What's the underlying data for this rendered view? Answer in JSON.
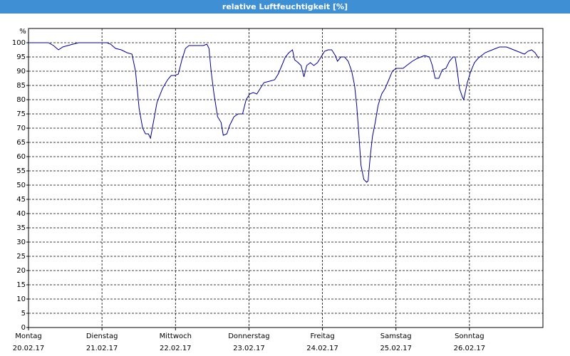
{
  "chart_data": {
    "type": "line",
    "title": "relative Luftfeuchtigkeit [%]",
    "y_label": "%",
    "xlim": [
      0,
      7
    ],
    "ylim": [
      0,
      105
    ],
    "yticks": [
      0,
      5,
      10,
      15,
      20,
      25,
      30,
      35,
      40,
      45,
      50,
      55,
      60,
      65,
      70,
      75,
      80,
      85,
      90,
      95,
      100
    ],
    "xticks": [
      {
        "value": 0,
        "label": "Montag",
        "sublabel": "20.02.17"
      },
      {
        "value": 1,
        "label": "Dienstag",
        "sublabel": "21.02.17"
      },
      {
        "value": 2,
        "label": "Mittwoch",
        "sublabel": "22.02.17"
      },
      {
        "value": 3,
        "label": "Donnerstag",
        "sublabel": "23.02.17"
      },
      {
        "value": 4,
        "label": "Freitag",
        "sublabel": "24.02.17"
      },
      {
        "value": 5,
        "label": "Samstag",
        "sublabel": "25.02.17"
      },
      {
        "value": 6,
        "label": "Sonntag",
        "sublabel": "26.02.17"
      }
    ],
    "grid": true,
    "x": [
      0,
      0.272,
      0.34,
      0.408,
      0.466,
      0.534,
      0.68,
      1.068,
      1.117,
      1.184,
      1.262,
      1.34,
      1.408,
      1.456,
      1.505,
      1.553,
      1.592,
      1.631,
      1.66,
      1.699,
      1.748,
      1.825,
      1.893,
      1.942,
      1.99,
      2.039,
      2.087,
      2.136,
      2.184,
      2.282,
      2.379,
      2.427,
      2.456,
      2.485,
      2.524,
      2.573,
      2.621,
      2.65,
      2.699,
      2.738,
      2.796,
      2.854,
      2.913,
      2.961,
      3.01,
      3.058,
      3.107,
      3.155,
      3.204,
      3.282,
      3.35,
      3.398,
      3.447,
      3.495,
      3.544,
      3.592,
      3.621,
      3.67,
      3.709,
      3.748,
      3.786,
      3.835,
      3.883,
      3.932,
      3.981,
      4.029,
      4.078,
      4.126,
      4.175,
      4.204,
      4.252,
      4.301,
      4.35,
      4.398,
      4.437,
      4.466,
      4.495,
      4.524,
      4.563,
      4.602,
      4.621,
      4.65,
      4.68,
      4.718,
      4.757,
      4.806,
      4.854,
      4.903,
      4.951,
      5,
      5.097,
      5.146,
      5.223,
      5.291,
      5.388,
      5.456,
      5.495,
      5.534,
      5.583,
      5.631,
      5.68,
      5.728,
      5.777,
      5.806,
      5.835,
      5.864,
      5.903,
      5.922,
      5.971,
      6.019,
      6.068,
      6.117,
      6.214,
      6.311,
      6.408,
      6.505,
      6.602,
      6.699,
      6.748,
      6.796,
      6.845,
      6.893,
      6.942
    ],
    "series": [
      {
        "name": "relative Luftfeuchtigkeit",
        "color": "#00008b",
        "values": [
          100,
          100,
          99,
          97.5,
          98.5,
          99,
          100,
          100,
          99.5,
          98,
          97.5,
          96.5,
          96,
          90,
          77,
          70,
          68,
          68,
          66.5,
          72,
          79,
          84,
          87,
          88.5,
          88.5,
          89,
          94,
          98,
          99,
          99,
          99,
          99.5,
          98,
          90,
          82,
          74,
          72,
          67.5,
          68,
          71,
          74,
          75,
          75,
          80,
          82,
          82.5,
          82,
          84,
          86,
          86.5,
          87,
          89,
          92,
          95,
          96.5,
          97.5,
          94,
          93,
          92,
          88,
          92,
          93,
          92,
          93,
          95,
          97,
          97.5,
          97.5,
          95.5,
          93.5,
          95,
          95,
          93.5,
          90,
          85,
          78,
          68,
          57,
          52,
          51,
          51.5,
          60,
          67,
          72,
          78,
          82,
          84,
          87,
          90,
          91,
          91,
          92,
          93.5,
          94.5,
          95.5,
          95,
          92,
          87.5,
          87.5,
          90.5,
          91,
          93.5,
          95,
          95,
          90,
          84,
          81,
          80,
          86,
          90,
          93,
          94.5,
          96.5,
          97.5,
          98.5,
          98.5,
          97.5,
          96.5,
          96,
          97,
          97.5,
          96.5,
          94.5
        ]
      }
    ]
  }
}
